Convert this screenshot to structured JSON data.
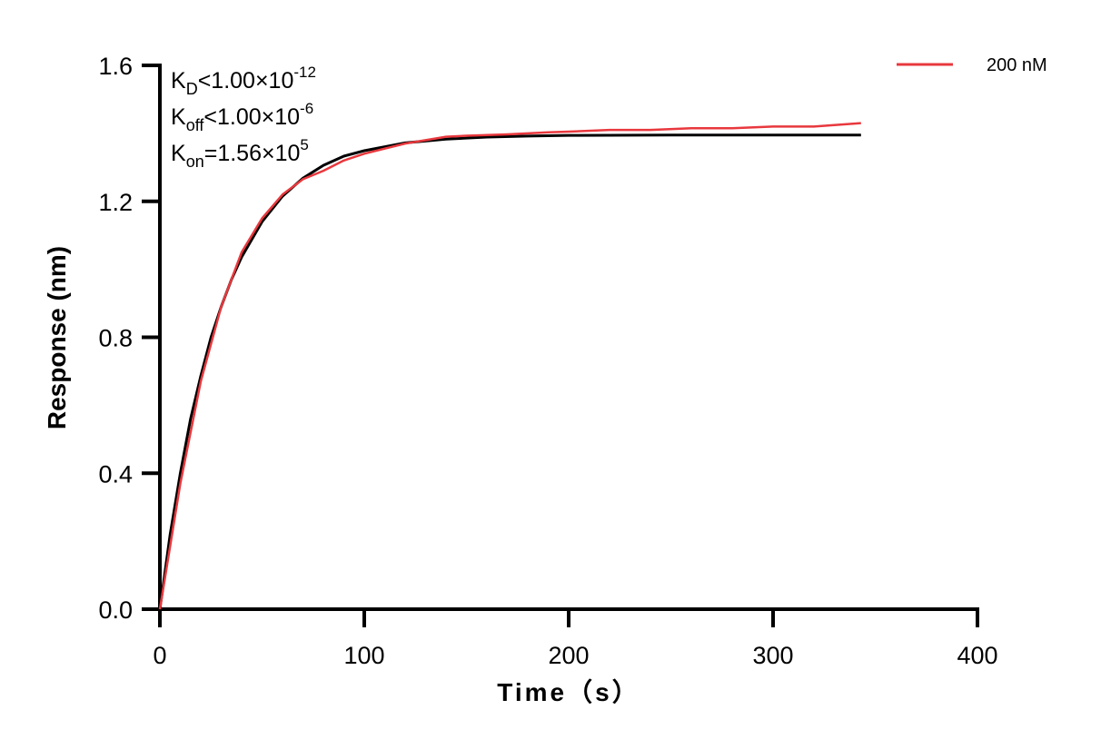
{
  "chart_data": {
    "type": "line",
    "xlabel": "Time（s）",
    "ylabel": "Response (nm)",
    "xlim": [
      0,
      400
    ],
    "ylim": [
      0,
      1.6
    ],
    "xticks": [
      "0",
      "100",
      "200",
      "300",
      "400"
    ],
    "yticks": [
      "0.0",
      "0.4",
      "0.8",
      "1.2",
      "1.6"
    ],
    "grid": false,
    "legend": {
      "placement": "top-right",
      "entries": [
        "200 nM"
      ]
    },
    "annotations": [
      {
        "base": "K",
        "sub": "D",
        "text": "<1.00×10",
        "sup": "-12"
      },
      {
        "base": "K",
        "sub": "off",
        "text": "<1.00×10",
        "sup": "-6"
      },
      {
        "base": "K",
        "sub": "on",
        "text": "=1.56×10",
        "sup": "5"
      }
    ],
    "series": [
      {
        "name": "200 nM",
        "color": "#e8383d",
        "x": [
          0,
          10,
          20,
          30,
          40,
          50,
          60,
          70,
          80,
          90,
          100,
          110,
          120,
          130,
          140,
          150,
          160,
          170,
          180,
          190,
          200,
          220,
          240,
          260,
          280,
          300,
          320,
          343
        ],
        "y": [
          0,
          0.37,
          0.67,
          0.89,
          1.05,
          1.15,
          1.22,
          1.265,
          1.29,
          1.32,
          1.34,
          1.355,
          1.37,
          1.38,
          1.39,
          1.393,
          1.395,
          1.397,
          1.4,
          1.403,
          1.405,
          1.41,
          1.41,
          1.415,
          1.415,
          1.42,
          1.42,
          1.43
        ]
      },
      {
        "role": "fit",
        "color": "#000000",
        "x": [
          0,
          5,
          10,
          15,
          20,
          25,
          30,
          35,
          40,
          50,
          60,
          70,
          80,
          90,
          100,
          120,
          140,
          160,
          180,
          200,
          250,
          300,
          343
        ],
        "y": [
          0,
          0.22,
          0.4,
          0.56,
          0.686,
          0.8,
          0.89,
          0.97,
          1.036,
          1.14,
          1.215,
          1.268,
          1.306,
          1.333,
          1.349,
          1.372,
          1.383,
          1.389,
          1.392,
          1.394,
          1.395,
          1.395,
          1.395
        ]
      }
    ]
  }
}
